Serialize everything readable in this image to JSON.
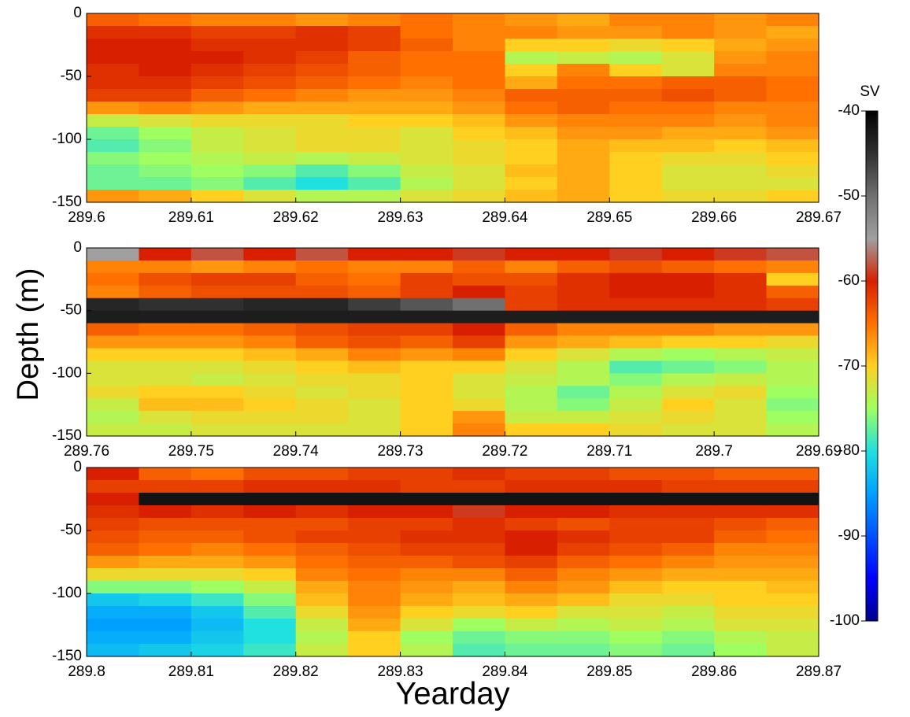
{
  "figure": {
    "ylabel": "Depth (m)",
    "xlabel": "Yearday",
    "colorbar": {
      "label": "SV",
      "lim": [
        -100,
        -40
      ],
      "ticks": [
        -40,
        -50,
        -60,
        -70,
        -80,
        -90,
        -100
      ],
      "colormap": [
        "#00008f",
        "#0000ff",
        "#0050ff",
        "#00a0ff",
        "#20e0e0",
        "#a0ff60",
        "#ffd020",
        "#ff7000",
        "#d82000",
        "#a0a0a0",
        "#707070",
        "#303030",
        "#000000"
      ]
    }
  },
  "chart_data": [
    {
      "type": "heatmap",
      "xlim": [
        289.6,
        289.67
      ],
      "ylim": [
        -150,
        0
      ],
      "xticks": [
        289.6,
        289.61,
        289.62,
        289.63,
        289.64,
        289.65,
        289.66,
        289.67
      ],
      "yticks": [
        0,
        -50,
        -100,
        -150
      ],
      "x": [
        289.6025,
        289.6075,
        289.6125,
        289.6175,
        289.6225,
        289.6275,
        289.6325,
        289.6375,
        289.6425,
        289.6475,
        289.6525,
        289.6575,
        289.6625,
        289.6675
      ],
      "y": [
        -5,
        -15,
        -25,
        -35,
        -45,
        -55,
        -65,
        -75,
        -85,
        -95,
        -105,
        -115,
        -125,
        -135,
        -145
      ],
      "values": [
        [
          -64,
          -65,
          -66,
          -66,
          -67,
          -66,
          -65,
          -66,
          -67,
          -68,
          -66,
          -66,
          -67,
          -66
        ],
        [
          -61,
          -61,
          -62,
          -62,
          -61,
          -62,
          -65,
          -66,
          -66,
          -67,
          -67,
          -66,
          -67,
          -68
        ],
        [
          -60,
          -60,
          -61,
          -61,
          -61,
          -62,
          -64,
          -66,
          -70,
          -70,
          -71,
          -70,
          -68,
          -67
        ],
        [
          -60,
          -60,
          -60,
          -61,
          -62,
          -64,
          -65,
          -65,
          -74,
          -73,
          -74,
          -72,
          -67,
          -66
        ],
        [
          -61,
          -60,
          -61,
          -62,
          -63,
          -64,
          -65,
          -65,
          -70,
          -66,
          -70,
          -72,
          -66,
          -66
        ],
        [
          -61,
          -61,
          -62,
          -63,
          -64,
          -65,
          -66,
          -65,
          -68,
          -65,
          -65,
          -64,
          -64,
          -65
        ],
        [
          -62,
          -62,
          -64,
          -65,
          -66,
          -67,
          -67,
          -66,
          -64,
          -64,
          -64,
          -63,
          -64,
          -65
        ],
        [
          -67,
          -66,
          -67,
          -68,
          -68,
          -68,
          -68,
          -67,
          -65,
          -64,
          -65,
          -65,
          -66,
          -66
        ],
        [
          -73,
          -72,
          -71,
          -71,
          -71,
          -70,
          -70,
          -69,
          -67,
          -66,
          -66,
          -66,
          -67,
          -66
        ],
        [
          -77,
          -75,
          -73,
          -72,
          -71,
          -71,
          -72,
          -70,
          -69,
          -67,
          -67,
          -68,
          -68,
          -67
        ],
        [
          -78,
          -76,
          -73,
          -72,
          -71,
          -71,
          -72,
          -71,
          -70,
          -68,
          -69,
          -69,
          -70,
          -69
        ],
        [
          -76,
          -75,
          -74,
          -73,
          -74,
          -73,
          -72,
          -71,
          -70,
          -68,
          -70,
          -71,
          -71,
          -70
        ],
        [
          -77,
          -76,
          -75,
          -76,
          -78,
          -76,
          -73,
          -72,
          -69,
          -68,
          -70,
          -72,
          -72,
          -71
        ],
        [
          -77,
          -77,
          -76,
          -78,
          -80,
          -78,
          -74,
          -72,
          -70,
          -68,
          -70,
          -72,
          -72,
          -72
        ],
        [
          -67,
          -68,
          -70,
          -72,
          -74,
          -74,
          -72,
          -71,
          -69,
          -68,
          -70,
          -71,
          -71,
          -70
        ]
      ]
    },
    {
      "type": "heatmap",
      "xlim": [
        289.76,
        289.69
      ],
      "ylim": [
        -150,
        0
      ],
      "xticks": [
        289.76,
        289.75,
        289.74,
        289.73,
        289.72,
        289.71,
        289.7,
        289.69
      ],
      "yticks": [
        0,
        -50,
        -100,
        -150
      ],
      "x": [
        289.7575,
        289.7525,
        289.7475,
        289.7425,
        289.7375,
        289.7325,
        289.7275,
        289.7225,
        289.7175,
        289.7125,
        289.7075,
        289.7025,
        289.6975,
        289.6925
      ],
      "y": [
        -5,
        -15,
        -25,
        -35,
        -45,
        -55,
        -65,
        -75,
        -85,
        -95,
        -105,
        -115,
        -125,
        -135,
        -145
      ],
      "values": [
        [
          -55,
          -60,
          -58,
          -60,
          -58,
          -60,
          -60,
          -59,
          -60,
          -60,
          -59,
          -60,
          -59,
          -58
        ],
        [
          -66,
          -66,
          -67,
          -66,
          -65,
          -66,
          -66,
          -64,
          -66,
          -64,
          -63,
          -64,
          -65,
          -66
        ],
        [
          -65,
          -63,
          -62,
          -62,
          -64,
          -65,
          -62,
          -63,
          -63,
          -61,
          -60,
          -60,
          -61,
          -70
        ],
        [
          -66,
          -64,
          -63,
          -63,
          -63,
          -64,
          -62,
          -60,
          -62,
          -61,
          -60,
          -60,
          -61,
          -64
        ],
        [
          -44,
          -45,
          -45,
          -44,
          -44,
          -46,
          -48,
          -50,
          -62,
          -61,
          -61,
          -61,
          -61,
          -62
        ],
        [
          -43,
          -43,
          -43,
          -43,
          -43,
          -43,
          -43,
          -43,
          -43,
          -43,
          -43,
          -43,
          -43,
          -43
        ],
        [
          -64,
          -65,
          -65,
          -64,
          -63,
          -62,
          -62,
          -60,
          -64,
          -66,
          -66,
          -66,
          -67,
          -67
        ],
        [
          -67,
          -67,
          -67,
          -66,
          -64,
          -63,
          -64,
          -62,
          -67,
          -68,
          -69,
          -70,
          -70,
          -71
        ],
        [
          -70,
          -70,
          -70,
          -69,
          -68,
          -66,
          -67,
          -66,
          -70,
          -72,
          -74,
          -75,
          -74,
          -73
        ],
        [
          -72,
          -72,
          -72,
          -71,
          -70,
          -69,
          -70,
          -70,
          -72,
          -74,
          -78,
          -77,
          -76,
          -74
        ],
        [
          -72,
          -72,
          -73,
          -72,
          -71,
          -71,
          -70,
          -72,
          -73,
          -74,
          -76,
          -74,
          -73,
          -74
        ],
        [
          -71,
          -70,
          -70,
          -71,
          -72,
          -71,
          -70,
          -72,
          -74,
          -77,
          -74,
          -72,
          -71,
          -75
        ],
        [
          -73,
          -69,
          -69,
          -70,
          -71,
          -72,
          -70,
          -71,
          -74,
          -76,
          -73,
          -70,
          -72,
          -76
        ],
        [
          -74,
          -72,
          -71,
          -71,
          -71,
          -72,
          -70,
          -67,
          -73,
          -73,
          -72,
          -71,
          -72,
          -75
        ],
        [
          -73,
          -73,
          -72,
          -72,
          -72,
          -72,
          -70,
          -66,
          -70,
          -70,
          -71,
          -72,
          -72,
          -74
        ]
      ]
    },
    {
      "type": "heatmap",
      "xlim": [
        289.8,
        289.87
      ],
      "ylim": [
        -150,
        0
      ],
      "xticks": [
        289.8,
        289.81,
        289.82,
        289.83,
        289.84,
        289.85,
        289.86,
        289.87
      ],
      "yticks": [
        0,
        -50,
        -100,
        -150
      ],
      "x": [
        289.8025,
        289.8075,
        289.8125,
        289.8175,
        289.8225,
        289.8275,
        289.8325,
        289.8375,
        289.8425,
        289.8475,
        289.8525,
        289.8575,
        289.8625,
        289.8675
      ],
      "y": [
        -5,
        -15,
        -25,
        -35,
        -45,
        -55,
        -65,
        -75,
        -85,
        -95,
        -105,
        -115,
        -125,
        -135,
        -145
      ],
      "values": [
        [
          -60,
          -64,
          -65,
          -63,
          -63,
          -62,
          -62,
          -61,
          -62,
          -62,
          -63,
          -63,
          -64,
          -64
        ],
        [
          -62,
          -62,
          -62,
          -61,
          -61,
          -61,
          -62,
          -62,
          -61,
          -61,
          -61,
          -62,
          -62,
          -62
        ],
        [
          -60,
          -42,
          -42,
          -42,
          -42,
          -42,
          -42,
          -42,
          -42,
          -42,
          -42,
          -42,
          -42,
          -42
        ],
        [
          -61,
          -60,
          -61,
          -60,
          -61,
          -60,
          -60,
          -59,
          -60,
          -60,
          -61,
          -61,
          -61,
          -61
        ],
        [
          -62,
          -63,
          -63,
          -63,
          -63,
          -62,
          -62,
          -61,
          -62,
          -63,
          -62,
          -62,
          -63,
          -64
        ],
        [
          -63,
          -64,
          -64,
          -63,
          -62,
          -62,
          -61,
          -61,
          -60,
          -61,
          -62,
          -62,
          -64,
          -65
        ],
        [
          -64,
          -65,
          -66,
          -65,
          -64,
          -63,
          -62,
          -62,
          -60,
          -62,
          -63,
          -64,
          -66,
          -66
        ],
        [
          -67,
          -68,
          -68,
          -67,
          -65,
          -64,
          -64,
          -63,
          -62,
          -64,
          -65,
          -66,
          -67,
          -67
        ],
        [
          -71,
          -71,
          -71,
          -70,
          -66,
          -65,
          -66,
          -66,
          -64,
          -66,
          -67,
          -68,
          -68,
          -68
        ],
        [
          -76,
          -76,
          -75,
          -73,
          -68,
          -66,
          -67,
          -68,
          -66,
          -67,
          -69,
          -70,
          -70,
          -69
        ],
        [
          -82,
          -81,
          -79,
          -76,
          -69,
          -66,
          -68,
          -69,
          -68,
          -69,
          -71,
          -71,
          -70,
          -70
        ],
        [
          -84,
          -84,
          -82,
          -78,
          -71,
          -67,
          -70,
          -71,
          -70,
          -72,
          -72,
          -73,
          -71,
          -71
        ],
        [
          -85,
          -85,
          -83,
          -80,
          -73,
          -68,
          -72,
          -75,
          -73,
          -74,
          -73,
          -74,
          -72,
          -72
        ],
        [
          -84,
          -84,
          -82,
          -80,
          -74,
          -70,
          -75,
          -77,
          -76,
          -76,
          -75,
          -76,
          -74,
          -73
        ],
        [
          -83,
          -82,
          -81,
          -79,
          -73,
          -70,
          -74,
          -78,
          -77,
          -77,
          -76,
          -77,
          -75,
          -73
        ]
      ]
    }
  ]
}
